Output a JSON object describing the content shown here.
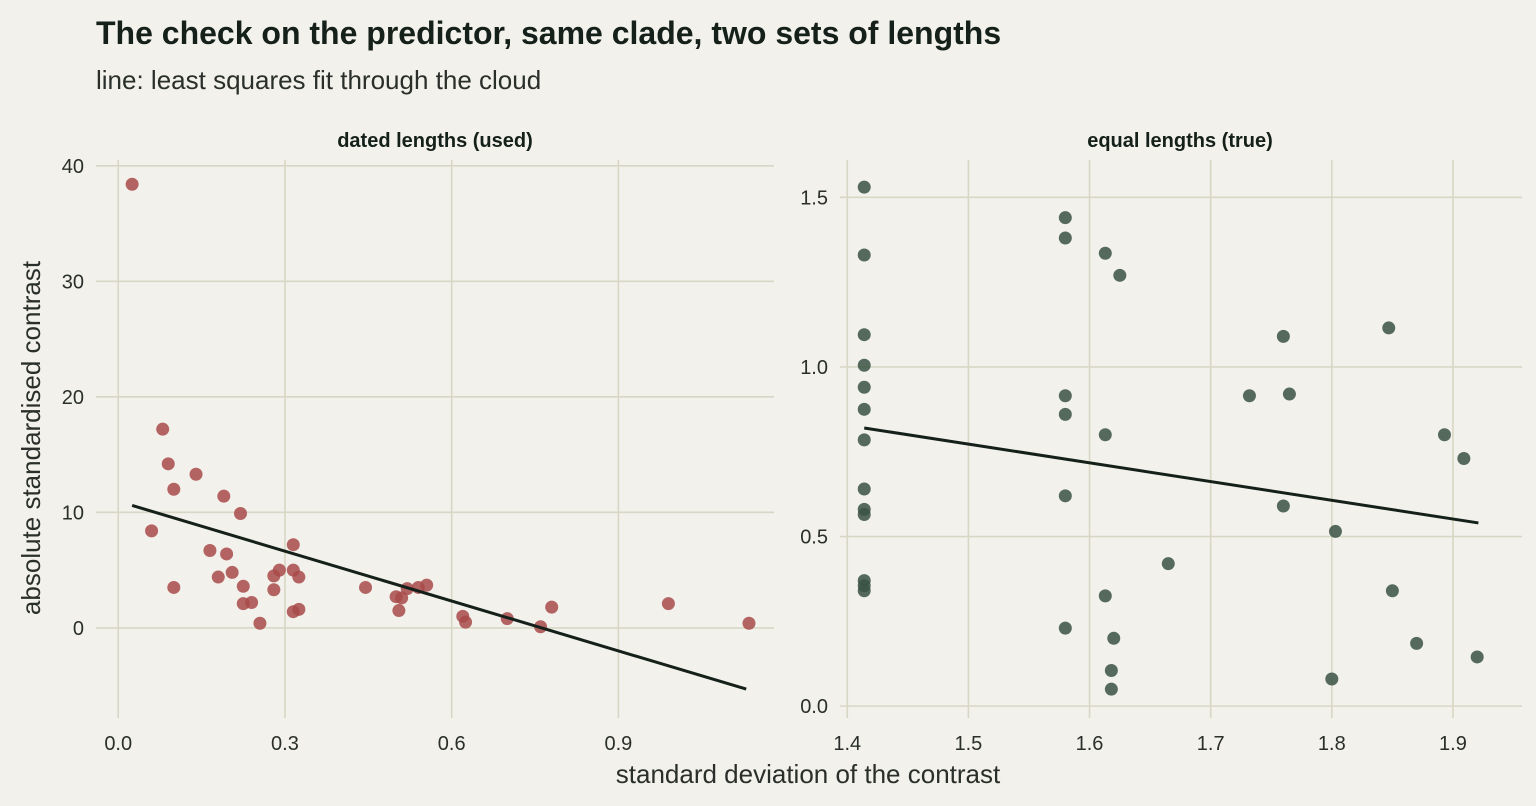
{
  "title": "The check on the predictor, same clade, two sets of lengths",
  "subtitle": "line: least squares fit through the cloud",
  "xlabel": "standard deviation of the contrast",
  "ylabel": "absolute standardised contrast",
  "colors": {
    "background": "#f2f1eb",
    "grid": "#d8d7c5",
    "fit_line": "#15201a"
  },
  "chart_data": [
    {
      "type": "scatter",
      "facet_title": "dated lengths (used)",
      "xlim": [
        -0.04,
        1.18
      ],
      "ylim": [
        -7.8,
        40.5
      ],
      "xticks": [
        0.0,
        0.3,
        0.6,
        0.9
      ],
      "xtick_labels": [
        "0.0",
        "0.3",
        "0.6",
        "0.9"
      ],
      "yticks": [
        0,
        10,
        20,
        30,
        40
      ],
      "ytick_labels": [
        "0",
        "10",
        "20",
        "30",
        "40"
      ],
      "grid": true,
      "point_color": "#a84a4a",
      "fit_line": {
        "x": [
          0.025,
          1.13
        ],
        "y": [
          10.6,
          -5.3
        ]
      },
      "points": [
        [
          0.025,
          38.4
        ],
        [
          0.08,
          17.2
        ],
        [
          0.09,
          14.2
        ],
        [
          0.1,
          12.0
        ],
        [
          0.14,
          13.3
        ],
        [
          0.19,
          11.4
        ],
        [
          0.22,
          9.9
        ],
        [
          0.06,
          8.4
        ],
        [
          0.165,
          6.7
        ],
        [
          0.195,
          6.4
        ],
        [
          0.1,
          3.5
        ],
        [
          0.18,
          4.4
        ],
        [
          0.205,
          4.8
        ],
        [
          0.225,
          3.6
        ],
        [
          0.225,
          2.1
        ],
        [
          0.24,
          2.2
        ],
        [
          0.255,
          0.4
        ],
        [
          0.28,
          4.5
        ],
        [
          0.29,
          5.0
        ],
        [
          0.28,
          3.3
        ],
        [
          0.315,
          7.2
        ],
        [
          0.315,
          5.0
        ],
        [
          0.325,
          4.4
        ],
        [
          0.315,
          1.4
        ],
        [
          0.325,
          1.6
        ],
        [
          0.445,
          3.5
        ],
        [
          0.5,
          2.7
        ],
        [
          0.51,
          2.6
        ],
        [
          0.52,
          3.4
        ],
        [
          0.54,
          3.5
        ],
        [
          0.555,
          3.7
        ],
        [
          0.505,
          1.5
        ],
        [
          0.62,
          1.0
        ],
        [
          0.625,
          0.5
        ],
        [
          0.7,
          0.8
        ],
        [
          0.76,
          0.1
        ],
        [
          0.78,
          1.8
        ],
        [
          0.99,
          2.1
        ],
        [
          1.135,
          0.4
        ]
      ]
    },
    {
      "type": "scatter",
      "facet_title": "equal lengths (true)",
      "xlim": [
        1.394,
        1.957
      ],
      "ylim": [
        -0.035,
        1.61
      ],
      "xticks": [
        1.4,
        1.5,
        1.6,
        1.7,
        1.8,
        1.9
      ],
      "xtick_labels": [
        "1.4",
        "1.5",
        "1.6",
        "1.7",
        "1.8",
        "1.9"
      ],
      "yticks": [
        0.0,
        0.5,
        1.0,
        1.5
      ],
      "ytick_labels": [
        "0.0",
        "0.5",
        "1.0",
        "1.5"
      ],
      "grid": true,
      "point_color": "#3a5244",
      "fit_line": {
        "x": [
          1.414,
          1.921
        ],
        "y": [
          0.82,
          0.54
        ]
      },
      "points": [
        [
          1.414,
          1.53
        ],
        [
          1.414,
          1.33
        ],
        [
          1.414,
          1.095
        ],
        [
          1.414,
          1.005
        ],
        [
          1.414,
          0.94
        ],
        [
          1.414,
          0.875
        ],
        [
          1.414,
          0.785
        ],
        [
          1.414,
          0.64
        ],
        [
          1.414,
          0.58
        ],
        [
          1.414,
          0.565
        ],
        [
          1.414,
          0.37
        ],
        [
          1.414,
          0.355
        ],
        [
          1.414,
          0.34
        ],
        [
          1.58,
          1.44
        ],
        [
          1.58,
          1.38
        ],
        [
          1.58,
          0.915
        ],
        [
          1.58,
          0.86
        ],
        [
          1.58,
          0.62
        ],
        [
          1.58,
          0.23
        ],
        [
          1.613,
          1.335
        ],
        [
          1.625,
          1.27
        ],
        [
          1.613,
          0.8
        ],
        [
          1.613,
          0.325
        ],
        [
          1.62,
          0.2
        ],
        [
          1.618,
          0.105
        ],
        [
          1.618,
          0.05
        ],
        [
          1.665,
          0.42
        ],
        [
          1.732,
          0.915
        ],
        [
          1.76,
          1.09
        ],
        [
          1.765,
          0.92
        ],
        [
          1.76,
          0.59
        ],
        [
          1.803,
          0.515
        ],
        [
          1.8,
          0.08
        ],
        [
          1.847,
          1.115
        ],
        [
          1.85,
          0.34
        ],
        [
          1.87,
          0.185
        ],
        [
          1.893,
          0.8
        ],
        [
          1.909,
          0.73
        ],
        [
          1.92,
          0.145
        ]
      ]
    }
  ]
}
